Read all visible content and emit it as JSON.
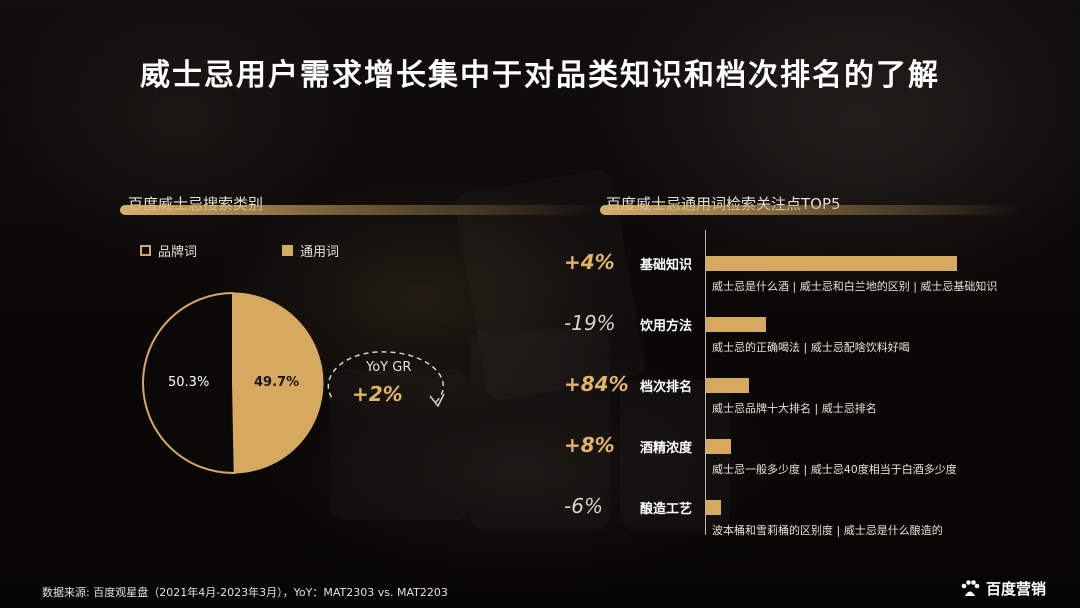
{
  "title": "威士忌用户需求增长集中于对品类知识和档次排名的了解",
  "left_section": {
    "title": "百度威士忌搜索类别",
    "legend": [
      {
        "label": "品牌词",
        "style": "outline"
      },
      {
        "label": "通用词",
        "style": "filled"
      }
    ],
    "yoy_label": "YoY GR",
    "yoy_value": "+2%"
  },
  "right_section": {
    "title": "百度威士忌通用词检索关注点TOP5"
  },
  "colors": {
    "accent": "#d6a95f",
    "accent_text": "#e4b466",
    "background": "#0d0b09"
  },
  "chart_data": [
    {
      "type": "pie",
      "title": "百度威士忌搜索类别",
      "slices": [
        {
          "name": "品牌词",
          "value": 50.3,
          "label": "50.3%"
        },
        {
          "name": "通用词",
          "value": 49.7,
          "label": "49.7%"
        }
      ]
    },
    {
      "type": "bar",
      "orientation": "horizontal",
      "title": "百度威士忌通用词检索关注点TOP5",
      "categories": [
        "基础知识",
        "饮用方法",
        "档次排名",
        "酒精浓度",
        "酿造工艺"
      ],
      "values": [
        100,
        24,
        17,
        10,
        6
      ],
      "growth": [
        "+4%",
        "-19%",
        "+84%",
        "+8%",
        "-6%"
      ],
      "descriptions": [
        "威士忌是什么酒 | 威士忌和白兰地的区别 | 威士忌基础知识",
        "威士忌的正确喝法 | 威士忌配啥饮料好喝",
        "威士忌品牌十大排名 | 威士忌排名",
        "威士忌一般多少度 | 威士忌40度相当于白酒多少度",
        "波本桶和雪莉桶的区别度 | 威士忌是什么酿造的"
      ]
    }
  ],
  "footer": "数据来源: 百度观星盘（2021年4月-2023年3月），YoY：MAT2303 vs. MAT2203",
  "logo": "百度营销"
}
